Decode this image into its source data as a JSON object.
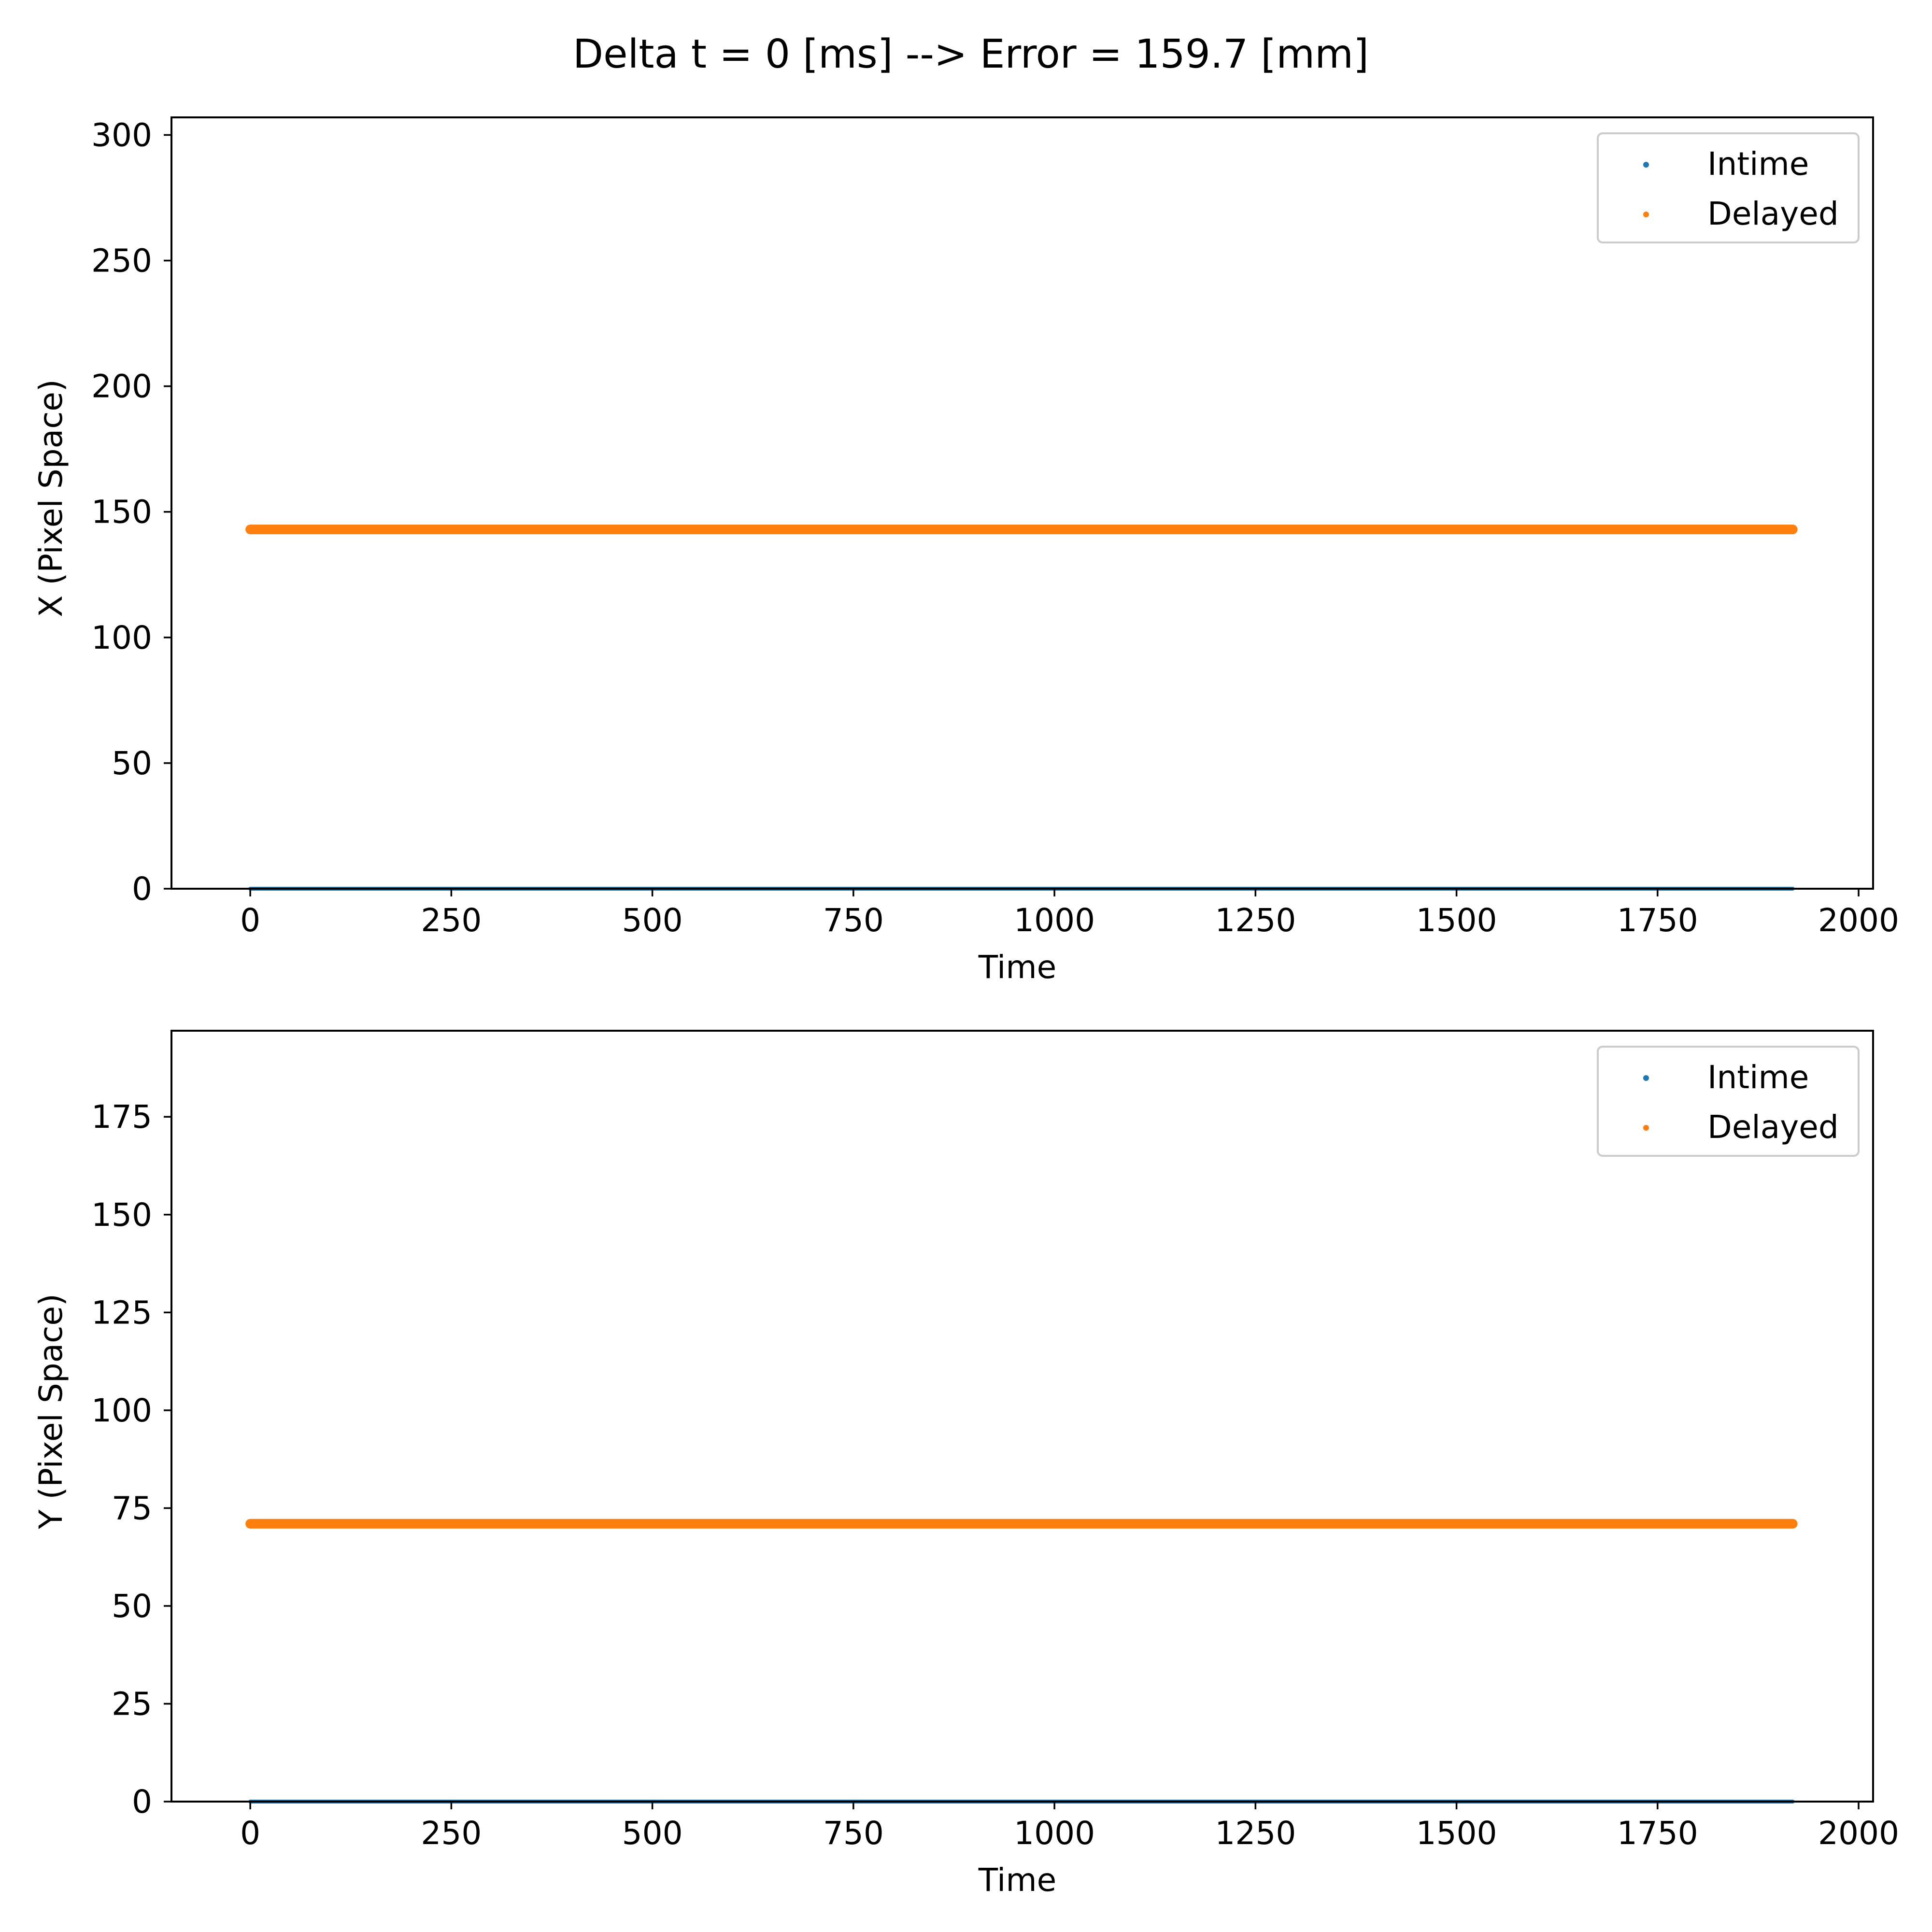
{
  "figure": {
    "suptitle": "Delta t = 0 [ms] --> Error = 159.7 [mm]"
  },
  "colors": {
    "intime": "#1f77b4",
    "delayed": "#ff7f0e"
  },
  "chart_data": [
    {
      "type": "scatter",
      "title": "",
      "xlabel": "Time",
      "ylabel": "X (Pixel Space)",
      "xlim": [
        -98,
        2018
      ],
      "ylim": [
        0,
        307
      ],
      "xticks": [
        0,
        250,
        500,
        750,
        1000,
        1250,
        1500,
        1750,
        2000
      ],
      "yticks": [
        0,
        50,
        100,
        150,
        200,
        250,
        300
      ],
      "grid": false,
      "legend_position": "upper-right",
      "series": [
        {
          "name": "Intime",
          "x": [
            0,
            1918
          ],
          "y": [
            0,
            0
          ],
          "color": "#1f77b4"
        },
        {
          "name": "Delayed",
          "x": [
            0,
            1918
          ],
          "y": [
            143,
            143
          ],
          "color": "#ff7f0e"
        }
      ]
    },
    {
      "type": "scatter",
      "title": "",
      "xlabel": "Time",
      "ylabel": "Y (Pixel Space)",
      "xlim": [
        -98,
        2018
      ],
      "ylim": [
        0,
        197
      ],
      "xticks": [
        0,
        250,
        500,
        750,
        1000,
        1250,
        1500,
        1750,
        2000
      ],
      "yticks": [
        0,
        25,
        50,
        75,
        100,
        125,
        150,
        175
      ],
      "grid": false,
      "legend_position": "upper-right",
      "series": [
        {
          "name": "Intime",
          "x": [
            0,
            1918
          ],
          "y": [
            0,
            0
          ],
          "color": "#1f77b4"
        },
        {
          "name": "Delayed",
          "x": [
            0,
            1918
          ],
          "y": [
            71,
            71
          ],
          "color": "#ff7f0e"
        }
      ]
    }
  ]
}
